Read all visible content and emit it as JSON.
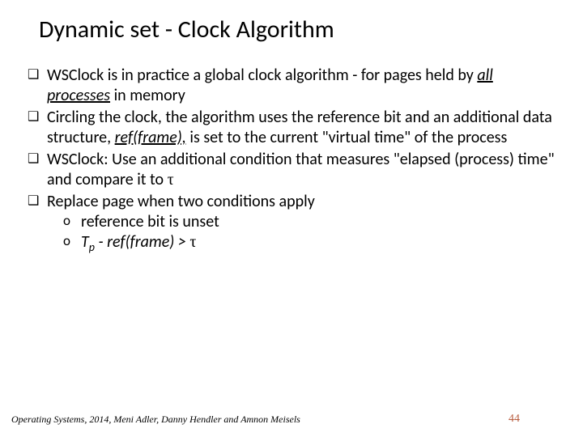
{
  "title": "Dynamic set - Clock Algorithm",
  "bullets": {
    "b1a": "WSClock is in practice a global clock algorithm - for pages held by ",
    "b1_em": "all processes",
    "b1b": " in memory",
    "b2a": "Circling the clock, the algorithm uses the reference bit and an additional data structure, ",
    "b2_em": "ref(frame),",
    "b2b": "  is set to the current \"virtual time\" of the process",
    "b3a": "WSClock: Use an additional condition that measures \"elapsed (process) time\" and compare it to ",
    "b3_tau": "τ",
    "b4": "Replace page when two conditions apply",
    "s1": "reference bit is unset",
    "s2_pre": " ",
    "s2_Tp_T": "T",
    "s2_Tp_p": "p",
    "s2_mid": " - ref(frame)  > ",
    "s2_tau": "τ"
  },
  "footer": "Operating Systems, 2014, Meni Adler, Danny Hendler and Amnon Meisels",
  "pagenum": "44",
  "pagenum_color": "#b85c3e"
}
